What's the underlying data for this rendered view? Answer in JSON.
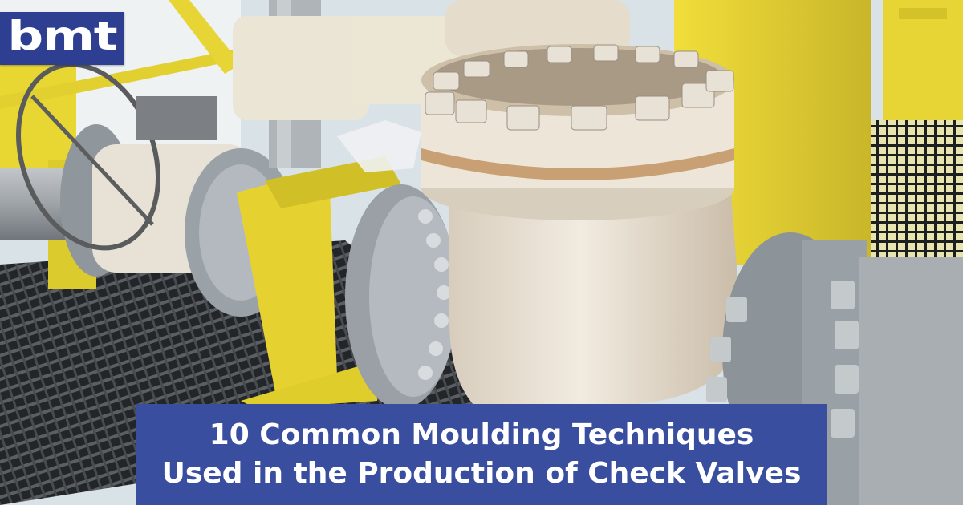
{
  "logo": {
    "text": "bmt"
  },
  "headline": {
    "line1": "10 Common Moulding Techniques",
    "line2": "Used in the Production of Check Valves"
  },
  "colors": {
    "banner": "#3a4ea0",
    "logo_bg": "#2e3f92",
    "text": "#ffffff",
    "structure_yellow": "#e4d22e",
    "valve_body": "#e9e1d4"
  }
}
